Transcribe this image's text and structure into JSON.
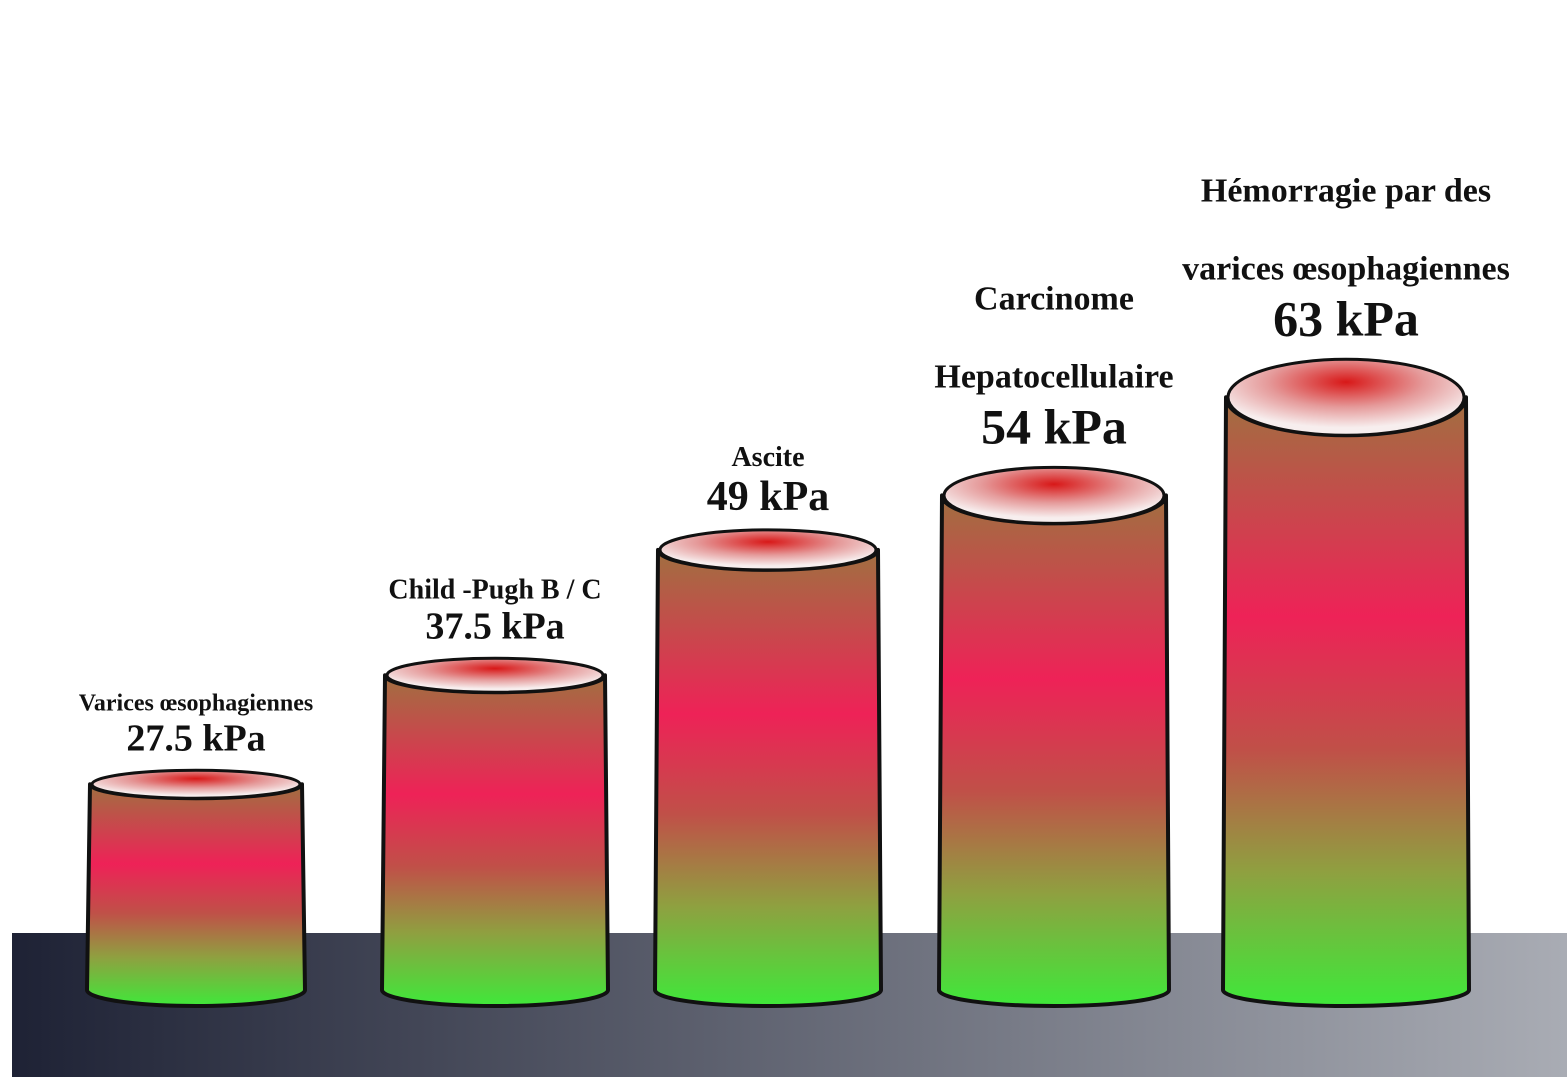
{
  "chart_data": {
    "type": "bar",
    "style": "3d-cylinder",
    "unit": "kPa",
    "categories": [
      [
        "Varices œsophagiennes"
      ],
      [
        "Child -Pugh B / C"
      ],
      [
        "Ascite"
      ],
      [
        "Carcinome",
        "Hepatocellulaire"
      ],
      [
        "Hémorragie  par des",
        "varices œsophagiennes"
      ]
    ],
    "values": [
      27.5,
      37.5,
      49,
      54,
      63
    ],
    "value_labels": [
      "27.5 kPa",
      "37.5 kPa",
      "49 kPa",
      "54 kPa",
      "63 kPa"
    ],
    "title": "",
    "xlabel": "",
    "ylabel": "",
    "colors": {
      "bottom": "#3fe83a",
      "middle": "#ee2257",
      "top": "#a07040",
      "rim_center": "#d81818",
      "rim_edge": "#f7eeee",
      "outline": "#111111",
      "floor_left": "#1e2235",
      "floor_right": "#a9acb4"
    }
  }
}
